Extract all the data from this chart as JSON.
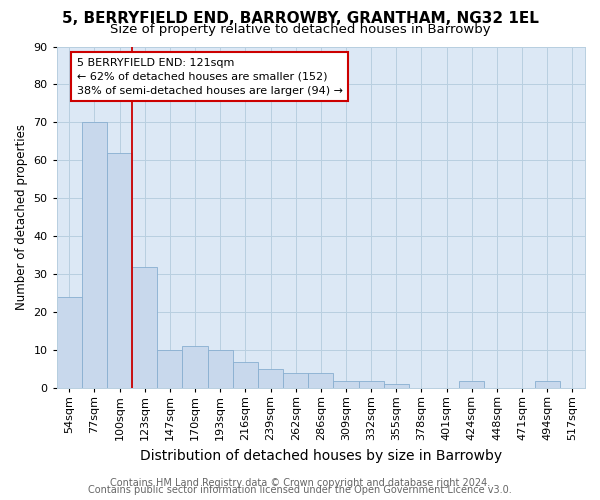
{
  "title": "5, BERRYFIELD END, BARROWBY, GRANTHAM, NG32 1EL",
  "subtitle": "Size of property relative to detached houses in Barrowby",
  "xlabel": "Distribution of detached houses by size in Barrowby",
  "ylabel": "Number of detached properties",
  "footer_line1": "Contains HM Land Registry data © Crown copyright and database right 2024.",
  "footer_line2": "Contains public sector information licensed under the Open Government Licence v3.0.",
  "bar_labels": [
    "54sqm",
    "77sqm",
    "100sqm",
    "123sqm",
    "147sqm",
    "170sqm",
    "193sqm",
    "216sqm",
    "239sqm",
    "262sqm",
    "286sqm",
    "309sqm",
    "332sqm",
    "355sqm",
    "378sqm",
    "401sqm",
    "424sqm",
    "448sqm",
    "471sqm",
    "494sqm",
    "517sqm"
  ],
  "bar_values": [
    24,
    70,
    62,
    32,
    10,
    11,
    10,
    7,
    5,
    4,
    4,
    2,
    2,
    1,
    0,
    0,
    2,
    0,
    0,
    2,
    0
  ],
  "bar_color": "#c8d8ec",
  "bar_edge_color": "#88aed0",
  "vline_x": 2.5,
  "annotation_line1": "5 BERRYFIELD END: 121sqm",
  "annotation_line2": "← 62% of detached houses are smaller (152)",
  "annotation_line3": "38% of semi-detached houses are larger (94) →",
  "annotation_box_facecolor": "#ffffff",
  "annotation_box_edgecolor": "#cc0000",
  "vline_color": "#cc0000",
  "ylim": [
    0,
    90
  ],
  "yticks": [
    0,
    10,
    20,
    30,
    40,
    50,
    60,
    70,
    80,
    90
  ],
  "bg_color": "#ffffff",
  "plot_bg_color": "#dce8f5",
  "grid_color": "#b8cfe0",
  "title_fontsize": 11,
  "subtitle_fontsize": 9.5,
  "xlabel_fontsize": 10,
  "ylabel_fontsize": 8.5,
  "tick_fontsize": 8,
  "annotation_fontsize": 8,
  "footer_fontsize": 7
}
